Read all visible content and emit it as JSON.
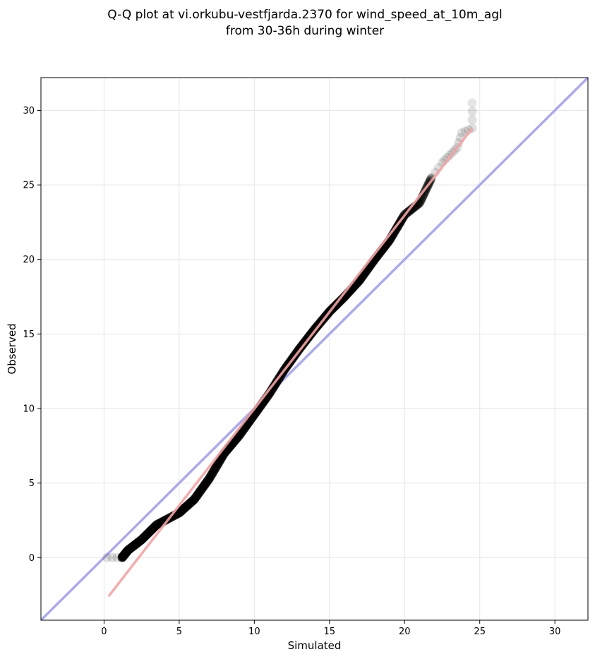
{
  "chart_data": {
    "type": "scatter",
    "title_lines": [
      "Q-Q plot at vi.orkubu-vestfjarda.2370 for wind_speed_at_10m_agl",
      "from 30-36h during winter"
    ],
    "xlabel": "Simulated",
    "ylabel": "Observed",
    "xlim": [
      -4.2,
      32.2
    ],
    "ylim": [
      -4.2,
      32.2
    ],
    "xticks": [
      0,
      5,
      10,
      15,
      20,
      25,
      30
    ],
    "yticks": [
      0,
      5,
      10,
      15,
      20,
      25,
      30
    ],
    "grid": true,
    "quantile_curve": [
      [
        0.2,
        0.0
      ],
      [
        1.2,
        0.0
      ],
      [
        1.6,
        0.5
      ],
      [
        2.5,
        1.2
      ],
      [
        3.5,
        2.2
      ],
      [
        5.0,
        3.0
      ],
      [
        6.0,
        3.9
      ],
      [
        7.0,
        5.3
      ],
      [
        8.0,
        7.0
      ],
      [
        9.0,
        8.2
      ],
      [
        10.0,
        9.6
      ],
      [
        11.0,
        11.0
      ],
      [
        12.0,
        12.6
      ],
      [
        13.0,
        14.0
      ],
      [
        14.0,
        15.3
      ],
      [
        15.0,
        16.5
      ],
      [
        16.0,
        17.5
      ],
      [
        17.0,
        18.6
      ],
      [
        18.0,
        20.0
      ],
      [
        19.0,
        21.3
      ],
      [
        20.0,
        23.0
      ],
      [
        21.0,
        23.8
      ],
      [
        21.8,
        25.5
      ],
      [
        22.5,
        26.5
      ],
      [
        23.0,
        27.0
      ],
      [
        23.5,
        27.5
      ],
      [
        23.8,
        28.5
      ],
      [
        24.5,
        28.8
      ],
      [
        24.5,
        30.5
      ]
    ],
    "series": [
      {
        "name": "",
        "role": "quantiles",
        "color": "#000000"
      },
      {
        "name": "",
        "role": "fit",
        "color": "#f4a3a3",
        "points": [
          [
            0.3,
            -2.6
          ],
          [
            24.5,
            28.8
          ]
        ]
      },
      {
        "name": "",
        "role": "identity",
        "color": "#aaaaee",
        "points": [
          [
            -4.2,
            -4.2
          ],
          [
            32.2,
            32.2
          ]
        ]
      }
    ]
  }
}
